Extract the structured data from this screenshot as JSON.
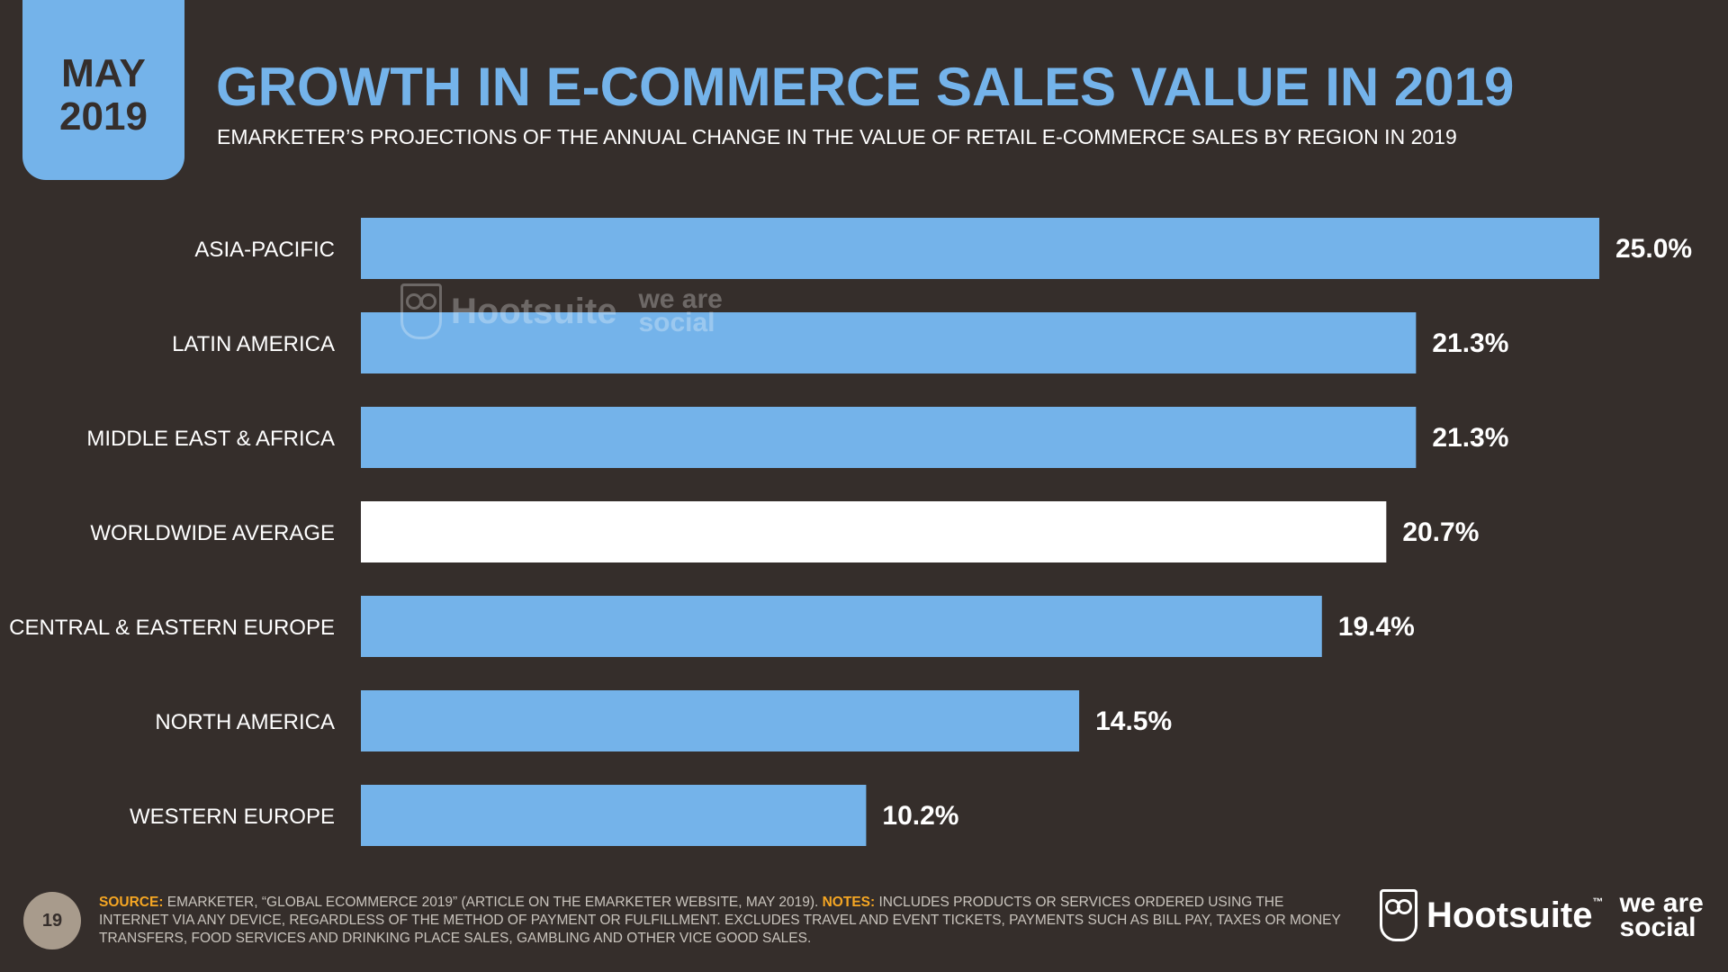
{
  "badge": {
    "month": "MAY",
    "year": "2019"
  },
  "header": {
    "title": "GROWTH IN E-COMMERCE SALES VALUE IN 2019",
    "subtitle": "EMARKETER’S PROJECTIONS OF THE ANNUAL CHANGE IN THE VALUE OF RETAIL E-COMMERCE SALES BY REGION IN 2019"
  },
  "chart_data": {
    "type": "bar",
    "orientation": "horizontal",
    "title": "GROWTH IN E-COMMERCE SALES VALUE IN 2019",
    "subtitle": "EMARKETER’S PROJECTIONS OF THE ANNUAL CHANGE IN THE VALUE OF RETAIL E-COMMERCE SALES BY REGION IN 2019",
    "xlabel": "",
    "ylabel": "",
    "xlim": [
      0,
      25
    ],
    "grid": false,
    "categories": [
      "ASIA-PACIFIC",
      "LATIN AMERICA",
      "MIDDLE EAST & AFRICA",
      "WORLDWIDE AVERAGE",
      "CENTRAL & EASTERN EUROPE",
      "NORTH AMERICA",
      "WESTERN EUROPE"
    ],
    "values": [
      25.0,
      21.3,
      21.3,
      20.7,
      19.4,
      14.5,
      10.2
    ],
    "value_labels": [
      "25.0%",
      "21.3%",
      "21.3%",
      "20.7%",
      "19.4%",
      "14.5%",
      "10.2%"
    ],
    "highlight_index": 3,
    "colors": {
      "bar": "#74b3ea",
      "highlight": "#ffffff",
      "background": "#352e2b"
    }
  },
  "watermark": {
    "hootsuite": "Hootsuite",
    "we_are_social": "we are social"
  },
  "footer": {
    "page_number": "19",
    "source_key": "SOURCE:",
    "source_text": " EMARKETER, “GLOBAL ECOMMERCE 2019” (ARTICLE ON THE EMARKETER WEBSITE, MAY 2019). ",
    "notes_key": "NOTES:",
    "notes_text": " INCLUDES PRODUCTS OR SERVICES ORDERED USING THE INTERNET VIA ANY DEVICE, REGARDLESS OF THE METHOD OF PAYMENT OR FULFILLMENT. EXCLUDES TRAVEL AND EVENT TICKETS, PAYMENTS SUCH AS BILL PAY, TAXES OR MONEY TRANSFERS, FOOD SERVICES AND DRINKING PLACE SALES, GAMBLING AND OTHER VICE GOOD SALES."
  },
  "brand": {
    "hootsuite": "Hootsuite",
    "tm": "™",
    "we_are_social": "we are social"
  }
}
